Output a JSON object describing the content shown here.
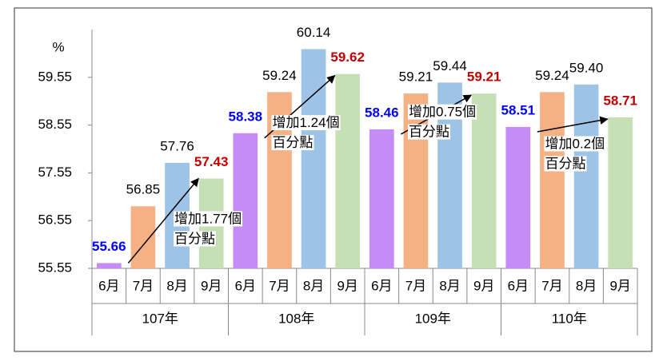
{
  "chart_data": {
    "type": "bar",
    "y_unit": "%",
    "groups": [
      "107年",
      "108年",
      "109年",
      "110年"
    ],
    "categories": [
      "6月",
      "7月",
      "8月",
      "9月",
      "6月",
      "7月",
      "8月",
      "9月",
      "6月",
      "7月",
      "8月",
      "9月",
      "6月",
      "7月",
      "8月",
      "9月"
    ],
    "values": [
      55.66,
      56.85,
      57.76,
      57.43,
      58.38,
      59.24,
      60.14,
      59.62,
      58.46,
      59.21,
      59.44,
      59.21,
      58.51,
      59.24,
      59.4,
      58.71
    ],
    "value_labels": [
      "55.66",
      "56.85",
      "57.76",
      "57.43",
      "58.38",
      "59.24",
      "60.14",
      "59.62",
      "58.46",
      "59.21",
      "59.44",
      "59.21",
      "58.51",
      "59.24",
      "59.40",
      "58.71"
    ],
    "colors": [
      "#c58cf8",
      "#f4b183",
      "#9dc3e6",
      "#c5e0b4",
      "#c58cf8",
      "#f4b183",
      "#9dc3e6",
      "#c5e0b4",
      "#c58cf8",
      "#f4b183",
      "#9dc3e6",
      "#c5e0b4",
      "#c58cf8",
      "#f4b183",
      "#9dc3e6",
      "#c5e0b4"
    ],
    "value_label_colors": [
      "#0000ff",
      "#000000",
      "#000000",
      "#c00000",
      "#0000ff",
      "#000000",
      "#000000",
      "#c00000",
      "#0000ff",
      "#000000",
      "#000000",
      "#c00000",
      "#0000ff",
      "#000000",
      "#000000",
      "#c00000"
    ],
    "value_label_bold": [
      true,
      false,
      false,
      true,
      true,
      false,
      false,
      true,
      true,
      false,
      false,
      true,
      true,
      false,
      false,
      true
    ],
    "annotations": [
      [
        "增加1.77個",
        "百分點"
      ],
      [
        "增加1.24個",
        "百分點"
      ],
      [
        "增加0.75個",
        "百分點"
      ],
      [
        "增加0.2個",
        "百分點"
      ]
    ],
    "ylim": [
      55.55,
      60.55
    ],
    "yticks": [
      55.55,
      56.55,
      57.55,
      58.55,
      59.55
    ],
    "grid": false
  }
}
